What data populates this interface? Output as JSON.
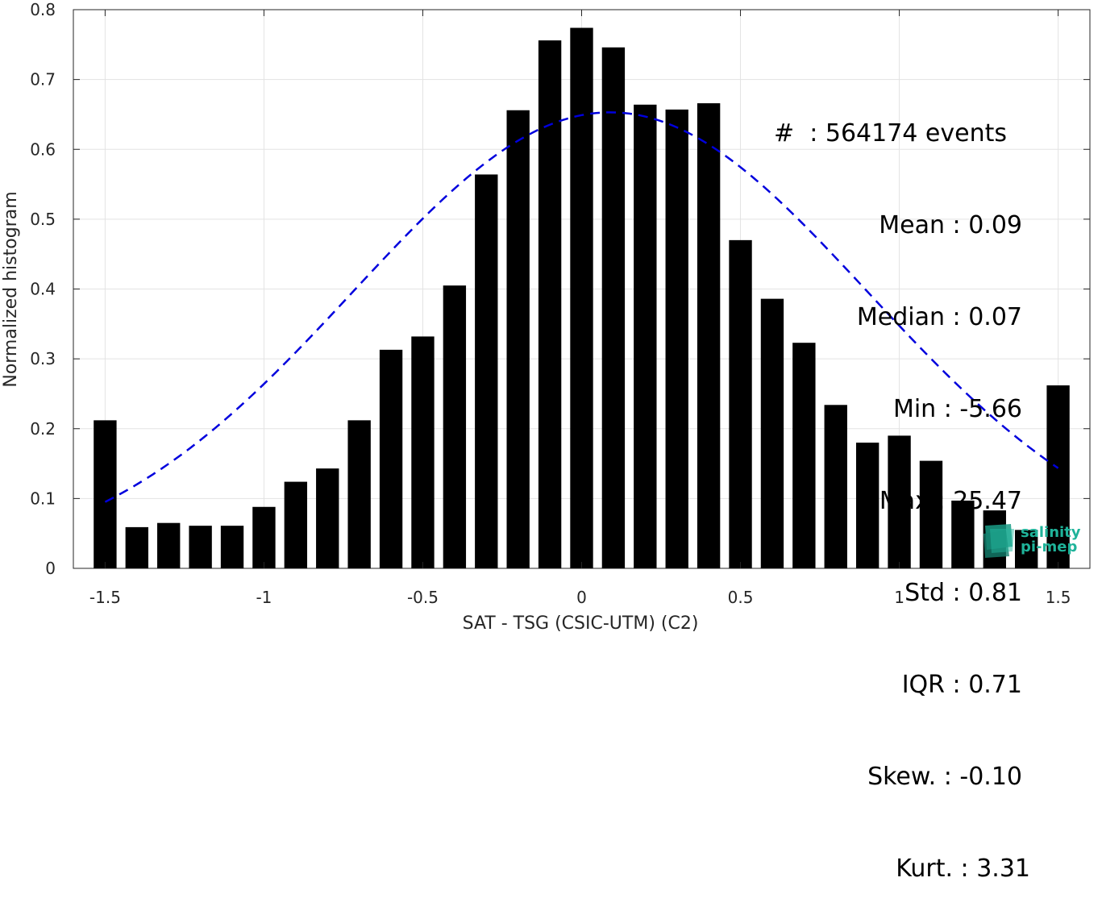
{
  "chart_data": {
    "type": "bar",
    "xlabel": "SAT - TSG (CSIC-UTM) (C2)",
    "ylabel": "Normalized histogram",
    "xlim": [
      -1.6,
      1.6
    ],
    "ylim": [
      0,
      0.8
    ],
    "xticks": [
      "-1.5",
      "-1",
      "-0.5",
      "0",
      "0.5",
      "1",
      "1.5"
    ],
    "xtick_values": [
      -1.5,
      -1,
      -0.5,
      0,
      0.5,
      1,
      1.5
    ],
    "yticks": [
      "0",
      "0.1",
      "0.2",
      "0.3",
      "0.4",
      "0.5",
      "0.6",
      "0.7",
      "0.8"
    ],
    "ytick_values": [
      0,
      0.1,
      0.2,
      0.3,
      0.4,
      0.5,
      0.6,
      0.7,
      0.8
    ],
    "grid": true,
    "bar_color": "#000000",
    "bars": {
      "x": [
        -1.5,
        -1.4,
        -1.3,
        -1.2,
        -1.1,
        -1.0,
        -0.9,
        -0.8,
        -0.7,
        -0.6,
        -0.5,
        -0.4,
        -0.3,
        -0.2,
        -0.1,
        0.0,
        0.1,
        0.2,
        0.3,
        0.4,
        0.5,
        0.6,
        0.7,
        0.8,
        0.9,
        1.0,
        1.1,
        1.2,
        1.3,
        1.4,
        1.5
      ],
      "values": [
        0.212,
        0.059,
        0.065,
        0.061,
        0.061,
        0.088,
        0.124,
        0.143,
        0.212,
        0.313,
        0.332,
        0.405,
        0.564,
        0.656,
        0.756,
        0.774,
        0.746,
        0.664,
        0.657,
        0.666,
        0.47,
        0.386,
        0.323,
        0.234,
        0.18,
        0.19,
        0.154,
        0.097,
        0.083,
        0.055,
        0.262
      ]
    },
    "fit_curve": {
      "style": "dashed",
      "color": "#0000dd",
      "mean": 0.09,
      "std": 0.81,
      "peak": 0.653,
      "x_range": [
        -1.5,
        1.5
      ]
    }
  },
  "stats": {
    "events": "#  : 564174 events",
    "mean": "Mean : 0.09",
    "median": "Median : 0.07",
    "min": "Min : -5.66",
    "max": "Max : 25.47",
    "std": "Std : 0.81",
    "iqr": "IQR : 0.71",
    "skew": "Skew. : -0.10",
    "kurt": "Kurt. : 3.31"
  },
  "watermark": {
    "line1": "salinity",
    "line2": "pi-mep",
    "color": "#1fb39a"
  }
}
